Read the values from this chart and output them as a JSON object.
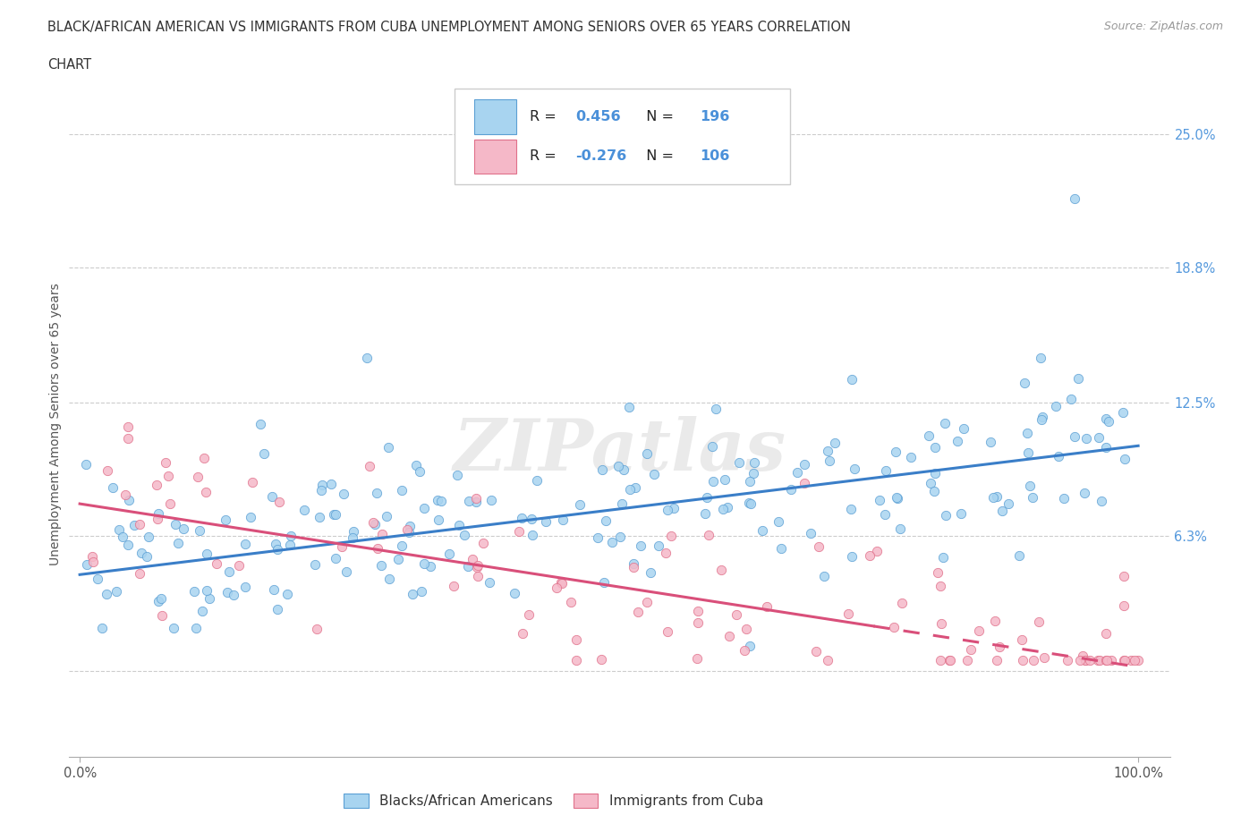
{
  "title_line1": "BLACK/AFRICAN AMERICAN VS IMMIGRANTS FROM CUBA UNEMPLOYMENT AMONG SENIORS OVER 65 YEARS CORRELATION",
  "title_line2": "CHART",
  "source": "Source: ZipAtlas.com",
  "ylabel": "Unemployment Among Seniors over 65 years",
  "ytick_vals": [
    0,
    6.3,
    12.5,
    18.8,
    25.0
  ],
  "ytick_labels": [
    "",
    "6.3%",
    "12.5%",
    "18.8%",
    "25.0%"
  ],
  "xticklabels": [
    "0.0%",
    "100.0%"
  ],
  "blue_fill": "#A8D4F0",
  "blue_edge": "#5B9FD4",
  "pink_fill": "#F5B8C8",
  "pink_edge": "#E0708A",
  "blue_line_color": "#3A7EC8",
  "pink_line_color": "#D94F7A",
  "label_color": "#4A90D9",
  "R_blue": 0.456,
  "N_blue": 196,
  "R_pink": -0.276,
  "N_pink": 106,
  "watermark": "ZIPatlas",
  "legend_label_blue": "Blacks/African Americans",
  "legend_label_pink": "Immigrants from Cuba",
  "blue_reg_y0": 4.5,
  "blue_reg_y1": 10.5,
  "pink_reg_y0": 7.8,
  "pink_reg_y1": 0.2,
  "pink_solid_end": 75,
  "xlim_min": -1,
  "xlim_max": 103,
  "ylim_min": -4,
  "ylim_max": 27
}
